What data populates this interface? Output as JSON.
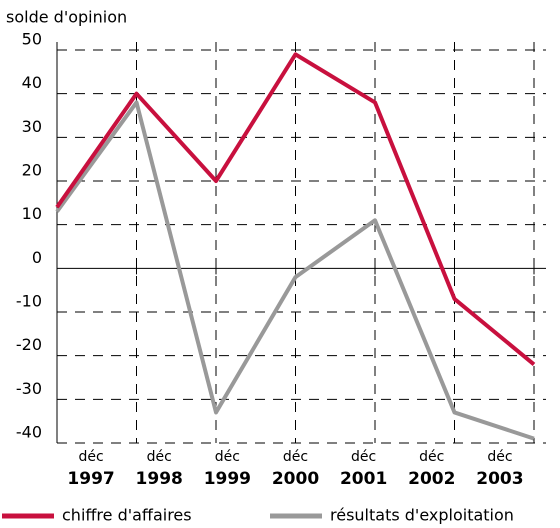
{
  "chart_data": {
    "type": "line",
    "y_label": "solde d'opinion",
    "category_prefix": "déc",
    "categories": [
      "1997",
      "1998",
      "1999",
      "2000",
      "2001",
      "2002",
      "2003"
    ],
    "series": [
      {
        "name": "chiffre d'affaires",
        "color": "#c8103e",
        "values": [
          14,
          40,
          20,
          49,
          38,
          -7,
          -22
        ]
      },
      {
        "name": "résultats d'exploitation",
        "color": "#999999",
        "values": [
          13,
          38,
          -33,
          -2,
          11,
          -33,
          -39
        ]
      }
    ],
    "ylim": [
      -40,
      50
    ],
    "yticks": [
      -40,
      -30,
      -20,
      -10,
      0,
      10,
      20,
      30,
      40,
      50
    ],
    "grid": true
  }
}
